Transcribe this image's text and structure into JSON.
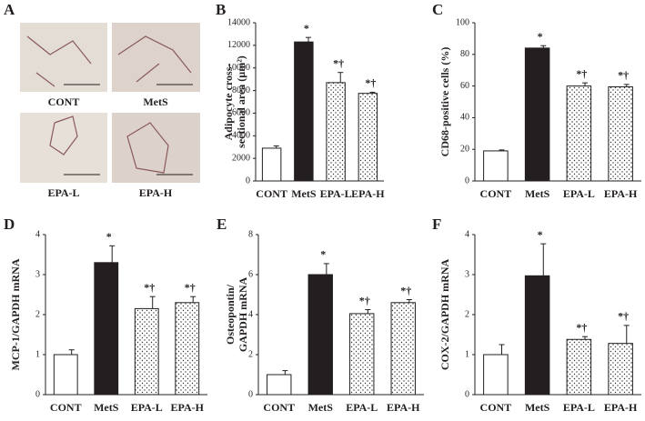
{
  "panel_labels": [
    "A",
    "B",
    "C",
    "D",
    "E",
    "F"
  ],
  "images": [
    "CONT",
    "MetS",
    "EPA-L",
    "EPA-H"
  ],
  "chart_data": [
    {
      "type": "bar",
      "categories": [
        "CONT",
        "MetS",
        "EPA-L",
        "EPA-H"
      ],
      "values": [
        2900,
        12300,
        8700,
        7750
      ],
      "errors": [
        200,
        400,
        900,
        100
      ],
      "annotations": [
        null,
        "*",
        "*†",
        "*†"
      ],
      "colors": [
        "#ffffff",
        "#231f20",
        "dots",
        "dots"
      ],
      "ylabel": [
        "Adipocyte cross-",
        "sectional area (µm²)"
      ],
      "ylim": [
        0,
        14000
      ],
      "yticks": [
        0,
        2000,
        4000,
        6000,
        8000,
        10000,
        12000,
        14000
      ]
    },
    {
      "type": "bar",
      "categories": [
        "CONT",
        "MetS",
        "EPA-L",
        "EPA-H"
      ],
      "values": [
        19,
        84,
        60,
        59.5
      ],
      "errors": [
        0.6,
        1.5,
        2,
        1.5
      ],
      "annotations": [
        null,
        "*",
        "*†",
        "*†"
      ],
      "colors": [
        "#ffffff",
        "#231f20",
        "dots",
        "dots"
      ],
      "ylabel": [
        "CD68-positive cells (%)"
      ],
      "ylim": [
        0,
        100
      ],
      "yticks": [
        0,
        20,
        40,
        60,
        80,
        100
      ]
    },
    {
      "type": "bar",
      "categories": [
        "CONT",
        "MetS",
        "EPA-L",
        "EPA-H"
      ],
      "values": [
        1,
        3.3,
        2.15,
        2.3
      ],
      "errors": [
        0.12,
        0.42,
        0.3,
        0.15
      ],
      "annotations": [
        null,
        "*",
        "*†",
        "*†"
      ],
      "colors": [
        "#ffffff",
        "#231f20",
        "dots",
        "dots"
      ],
      "ylabel": [
        "MCP-1/GAPDH mRNA"
      ],
      "ylim": [
        0,
        4
      ],
      "yticks": [
        0,
        1,
        2,
        3,
        4
      ]
    },
    {
      "type": "bar",
      "categories": [
        "CONT",
        "MetS",
        "EPA-L",
        "EPA-H"
      ],
      "values": [
        1,
        6,
        4.05,
        4.6
      ],
      "errors": [
        0.2,
        0.55,
        0.2,
        0.15
      ],
      "annotations": [
        null,
        "*",
        "*†",
        "*†"
      ],
      "colors": [
        "#ffffff",
        "#231f20",
        "dots",
        "dots"
      ],
      "ylabel": [
        "Osteopontin/",
        "GAPDH mRNA"
      ],
      "ylim": [
        0,
        8
      ],
      "yticks": [
        0,
        2,
        4,
        6,
        8
      ]
    },
    {
      "type": "bar",
      "categories": [
        "CONT",
        "MetS",
        "EPA-L",
        "EPA-H"
      ],
      "values": [
        1,
        2.97,
        1.38,
        1.28
      ],
      "errors": [
        0.25,
        0.8,
        0.07,
        0.45
      ],
      "annotations": [
        null,
        "*",
        "*†",
        "*†"
      ],
      "colors": [
        "#ffffff",
        "#231f20",
        "dots",
        "dots"
      ],
      "ylabel": [
        "COX-2/GAPDH mRNA"
      ],
      "ylim": [
        0,
        4
      ],
      "yticks": [
        0,
        1,
        2,
        3,
        4
      ]
    }
  ]
}
